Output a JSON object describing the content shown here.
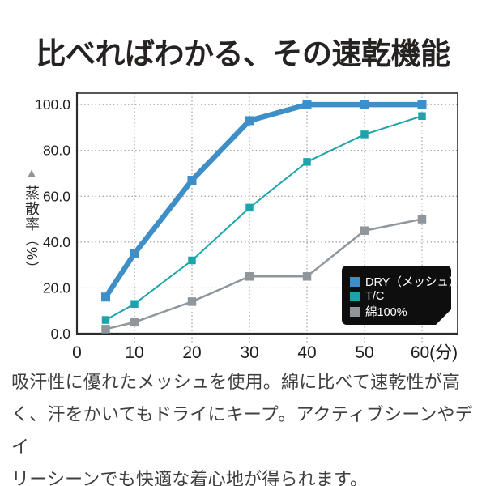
{
  "title": "比べればわかる、その速乾機能",
  "chart_data": {
    "type": "line",
    "x": [
      5,
      10,
      20,
      30,
      40,
      50,
      60
    ],
    "series": [
      {
        "name": "DRY（メッシュ）",
        "color": "#3e8ec7",
        "line_width": 6.5,
        "marker_size": 11,
        "values": [
          16,
          35,
          67,
          93,
          100,
          100,
          100
        ]
      },
      {
        "name": "T/C",
        "color": "#1aa5ad",
        "line_width": 2,
        "marker_size": 9.5,
        "values": [
          6,
          13,
          32,
          55,
          75,
          87,
          95
        ]
      },
      {
        "name": "綿100%",
        "color": "#8f969c",
        "line_width": 2.5,
        "marker_size": 10.5,
        "values": [
          2,
          5,
          14,
          25,
          25,
          45,
          50
        ]
      }
    ],
    "title": "",
    "xlabel": "",
    "ylabel": "蒸散率（%）",
    "ylabel_marker": "▲",
    "x_ticks": [
      0,
      10,
      20,
      30,
      40,
      50,
      60
    ],
    "x_tick_labels": [
      "0",
      "10",
      "20",
      "30",
      "40",
      "50",
      "60(分)"
    ],
    "y_ticks": [
      0,
      20,
      40,
      60,
      80,
      100
    ],
    "y_tick_labels": [
      "0.0",
      "20.0",
      "40.0",
      "60.0",
      "80.0",
      "100.0"
    ],
    "xlim": [
      0,
      66
    ],
    "ylim": [
      0,
      105
    ],
    "grid": "dotted",
    "legend_position": "bottom-right",
    "colors": {
      "grid": "#8c8c8c",
      "axis": "#2c2c2c",
      "legend_bg": "#0e0e0e",
      "legend_text": "#ffffff"
    }
  },
  "body": {
    "lines": [
      "吸汗性に優れたメッシュを使用。綿に比べて速乾性が高",
      "く、汗をかいてもドライにキープ。アクティブシーンやデイ",
      "リーシーンでも快適な着心地が得られます。"
    ]
  }
}
